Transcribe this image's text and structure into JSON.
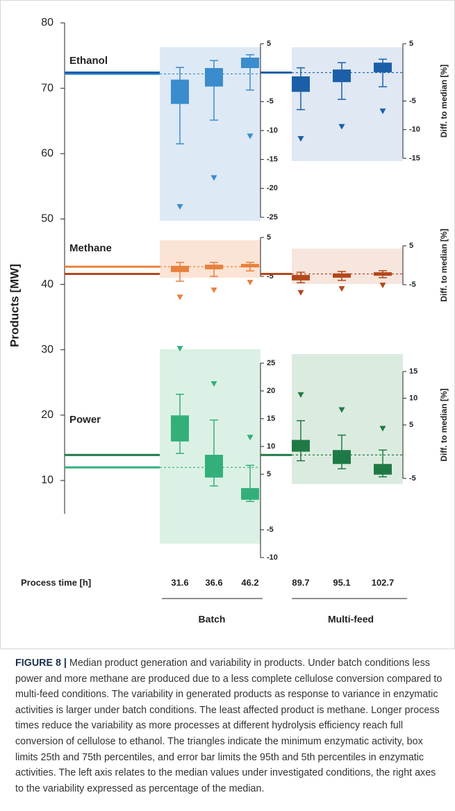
{
  "chart_data": {
    "type": "box-panels",
    "ylabel": "Products [MW]",
    "ylim": [
      10,
      80
    ],
    "yticks": [
      10,
      20,
      30,
      40,
      50,
      60,
      70,
      80
    ],
    "y2_label": "Diff. to median [%]",
    "x_label": "Process time [h]",
    "groups": [
      {
        "name": "Batch",
        "process_times": [
          31.6,
          36.6,
          46.2
        ]
      },
      {
        "name": "Multi-feed",
        "process_times": [
          89.7,
          95.1,
          102.7
        ]
      }
    ],
    "products": [
      {
        "name": "Ethanol",
        "color": "#2a74ba",
        "panels": [
          {
            "median": 72.2,
            "color": "#3a8ccc",
            "fill": "#dde9f5",
            "y2lim": [
              -25,
              5
            ],
            "y2ticks": [
              -25,
              -20,
              -15,
              -10,
              -5,
              5
            ],
            "boxes": [
              {
                "min": -23.2,
                "whisker_low": -12.3,
                "q1": -5.4,
                "q3": -1.2,
                "whisker_high": 0.9
              },
              {
                "min": -18.2,
                "whisker_low": -8.2,
                "q1": -2.4,
                "q3": 0.8,
                "whisker_high": 2.1
              },
              {
                "min": -11,
                "whisker_low": -3,
                "q1": 0.8,
                "q3": 2.6,
                "whisker_high": 3.1
              }
            ]
          },
          {
            "median": 72.4,
            "color": "#1b5fa8",
            "fill": "#dfe8f3",
            "y2lim": [
              -15,
              5
            ],
            "y2ticks": [
              -15,
              -10,
              -5,
              5
            ],
            "boxes": [
              {
                "min": -11.6,
                "whisker_low": -6.5,
                "q1": -3.4,
                "q3": -0.7,
                "whisker_high": 0.8
              },
              {
                "min": -9.5,
                "whisker_low": -4.7,
                "q1": -1.7,
                "q3": 0.5,
                "whisker_high": 1.7
              },
              {
                "min": -6.8,
                "whisker_low": -2.5,
                "q1": 0,
                "q3": 1.7,
                "whisker_high": 2.3
              }
            ]
          }
        ]
      },
      {
        "name": "Methane",
        "color": "#c8612a",
        "panels": [
          {
            "median": 42.7,
            "color": "#e8803e",
            "fill": "#fbe4d5",
            "y2lim": [
              -5,
              5
            ],
            "y2ticks": [
              -5,
              5
            ],
            "boxes": [
              {
                "min": -10.4,
                "whisker_low": -6.25,
                "q1": -3.9,
                "q3": -2.3,
                "whisker_high": -1.4
              },
              {
                "min": -8.6,
                "whisker_low": -5,
                "q1": -3.2,
                "q3": -2,
                "whisker_high": -1.4
              },
              {
                "min": -6.6,
                "whisker_low": -3.6,
                "q1": -2.7,
                "q3": -1.8,
                "whisker_high": -1.4
              }
            ]
          },
          {
            "median": 41.6,
            "color": "#b4471c",
            "fill": "#f6e6de",
            "y2lim": [
              -5,
              5
            ],
            "y2ticks": [
              -5,
              5
            ],
            "boxes": [
              {
                "min": -7.1,
                "whisker_low": -4.5,
                "q1": -3.9,
                "q3": -2.5,
                "whisker_high": -1.8
              },
              {
                "min": -6.1,
                "whisker_low": -3.9,
                "q1": -3.2,
                "q3": -2.1,
                "whisker_high": -1.6
              },
              {
                "min": -5.2,
                "whisker_low": -3.2,
                "q1": -2.7,
                "q3": -1.8,
                "whisker_high": -1.4
              }
            ]
          }
        ]
      },
      {
        "name": "Power",
        "color": "#2ea36a",
        "panels": [
          {
            "median": 12.0,
            "color": "#33b07a",
            "fill": "#dcf1e5",
            "y2lim": [
              -10,
              25
            ],
            "y2ticks": [
              -10,
              -5,
              5,
              10,
              15,
              20,
              25
            ],
            "boxes": [
              {
                "min": 27.6,
                "whisker_low": 8.75,
                "q1": 10.9,
                "q3": 15.6,
                "whisker_high": 19.4
              },
              {
                "min": 21.25,
                "whisker_low": 2.9,
                "q1": 4.4,
                "q3": 8.5,
                "whisker_high": 14.75
              },
              {
                "min": 11.6,
                "whisker_low": 0.1,
                "q1": 0.4,
                "q3": 2.5,
                "whisker_high": 6.6
              }
            ]
          },
          {
            "median": 13.9,
            "color": "#1e7a45",
            "fill": "#dcebdf",
            "y2lim": [
              -5,
              15
            ],
            "y2ticks": [
              -5,
              5,
              10,
              15
            ],
            "boxes": [
              {
                "min": 10.6,
                "whisker_low": -1.7,
                "q1": 0,
                "q3": 2.2,
                "whisker_high": 5.8
              },
              {
                "min": 7.8,
                "whisker_low": -3.2,
                "q1": -2.3,
                "q3": 0.3,
                "whisker_high": 3.1
              },
              {
                "min": 4.3,
                "whisker_low": -4.7,
                "q1": -4.3,
                "q3": -2.3,
                "whisker_high": 0.3
              }
            ]
          }
        ]
      }
    ]
  },
  "caption": {
    "label": "FIGURE 8 |",
    "text": "Median product generation and variability in products. Under batch conditions less power and more methane are produced due to a less complete cellulose conversion compared to multi-feed conditions. The variability in generated products as response to variance in enzymatic activities is larger under batch conditions. The least affected product is methane. Longer process times reduce the variability as more processes at different hydrolysis efficiency reach full conversion of cellulose to ethanol. The triangles indicate the minimum enzymatic activity, box limits 25th and 75th percentiles, and error bar limits the 95th and 5th percentiles in enzymatic activities. The left axis relates to the median values under investigated conditions, the right axes to the variability expressed as percentage of the median."
  }
}
